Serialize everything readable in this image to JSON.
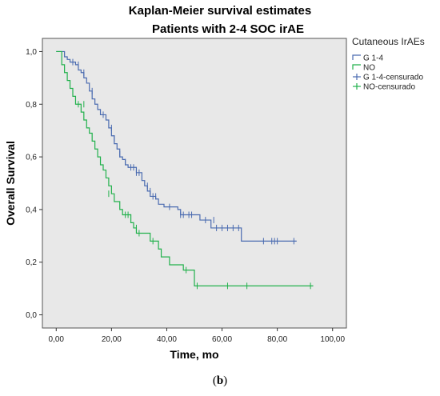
{
  "chart_data": {
    "type": "line",
    "step": true,
    "title": "Kaplan-Meier survival estimates",
    "subtitle": "Patients with 2-4 SOC irAE",
    "xlabel": "Time, mo",
    "ylabel": "Overall Survival",
    "xlim": [
      -5,
      105
    ],
    "ylim": [
      -0.05,
      1.05
    ],
    "x_ticks": [
      0,
      20,
      40,
      60,
      80,
      100
    ],
    "x_tick_labels": [
      "0,00",
      "20,00",
      "40,00",
      "60,00",
      "80,00",
      "100,00"
    ],
    "y_ticks": [
      0,
      0.2,
      0.4,
      0.6,
      0.8,
      1.0
    ],
    "y_tick_labels": [
      "0,0",
      "0,2",
      "0,4",
      "0,6",
      "0,8",
      "1,0"
    ],
    "grid": false,
    "plot_background": "#e8e8e8",
    "legend": {
      "title": "Cutaneous IrAEs",
      "position": "right",
      "entries": [
        {
          "label": "G 1-4",
          "color": "#4a6bb0",
          "kind": "line"
        },
        {
          "label": "NO",
          "color": "#22b14c",
          "kind": "line"
        },
        {
          "label": "G 1-4-censurado",
          "color": "#4a6bb0",
          "kind": "censor"
        },
        {
          "label": "NO-censurado",
          "color": "#22b14c",
          "kind": "censor"
        }
      ]
    },
    "series": [
      {
        "name": "G 1-4",
        "color": "#4a6bb0",
        "steps": [
          [
            0,
            1.0
          ],
          [
            3,
            0.98
          ],
          [
            4,
            0.97
          ],
          [
            5,
            0.96
          ],
          [
            7,
            0.95
          ],
          [
            8,
            0.93
          ],
          [
            9,
            0.92
          ],
          [
            10,
            0.9
          ],
          [
            11,
            0.88
          ],
          [
            12,
            0.85
          ],
          [
            13,
            0.82
          ],
          [
            14,
            0.8
          ],
          [
            15,
            0.78
          ],
          [
            16,
            0.76
          ],
          [
            18,
            0.74
          ],
          [
            19,
            0.71
          ],
          [
            20,
            0.68
          ],
          [
            21,
            0.65
          ],
          [
            22,
            0.63
          ],
          [
            23,
            0.6
          ],
          [
            24,
            0.59
          ],
          [
            25,
            0.57
          ],
          [
            26,
            0.56
          ],
          [
            29,
            0.54
          ],
          [
            31,
            0.51
          ],
          [
            32,
            0.49
          ],
          [
            33,
            0.47
          ],
          [
            34,
            0.45
          ],
          [
            36,
            0.44
          ],
          [
            37,
            0.42
          ],
          [
            39,
            0.41
          ],
          [
            44,
            0.4
          ],
          [
            45,
            0.38
          ],
          [
            52,
            0.36
          ],
          [
            56,
            0.33
          ],
          [
            67,
            0.28
          ]
        ],
        "end_x": 87,
        "censored": [
          [
            6,
            0.96
          ],
          [
            8,
            0.95
          ],
          [
            10,
            0.92
          ],
          [
            13,
            0.85
          ],
          [
            17,
            0.76
          ],
          [
            20,
            0.71
          ],
          [
            21,
            0.67
          ],
          [
            23,
            0.61
          ],
          [
            25,
            0.58
          ],
          [
            27,
            0.56
          ],
          [
            28,
            0.56
          ],
          [
            29,
            0.54
          ],
          [
            30,
            0.54
          ],
          [
            33,
            0.49
          ],
          [
            34,
            0.47
          ],
          [
            35,
            0.45
          ],
          [
            36,
            0.45
          ],
          [
            41,
            0.41
          ],
          [
            45,
            0.38
          ],
          [
            46,
            0.38
          ],
          [
            48,
            0.38
          ],
          [
            49,
            0.38
          ],
          [
            54,
            0.36
          ],
          [
            57,
            0.36
          ],
          [
            58,
            0.33
          ],
          [
            60,
            0.33
          ],
          [
            62,
            0.33
          ],
          [
            64,
            0.33
          ],
          [
            66,
            0.33
          ],
          [
            75,
            0.28
          ],
          [
            78,
            0.28
          ],
          [
            79,
            0.28
          ],
          [
            80,
            0.28
          ],
          [
            86,
            0.28
          ]
        ]
      },
      {
        "name": "NO",
        "color": "#22b14c",
        "steps": [
          [
            0,
            1.0
          ],
          [
            2,
            0.95
          ],
          [
            3,
            0.92
          ],
          [
            4,
            0.89
          ],
          [
            5,
            0.86
          ],
          [
            6,
            0.83
          ],
          [
            7,
            0.8
          ],
          [
            9,
            0.77
          ],
          [
            10,
            0.74
          ],
          [
            11,
            0.71
          ],
          [
            12,
            0.69
          ],
          [
            13,
            0.66
          ],
          [
            14,
            0.63
          ],
          [
            15,
            0.6
          ],
          [
            16,
            0.57
          ],
          [
            17,
            0.55
          ],
          [
            18,
            0.52
          ],
          [
            19,
            0.49
          ],
          [
            20,
            0.46
          ],
          [
            21,
            0.43
          ],
          [
            23,
            0.4
          ],
          [
            24,
            0.38
          ],
          [
            27,
            0.35
          ],
          [
            28,
            0.33
          ],
          [
            29,
            0.31
          ],
          [
            34,
            0.28
          ],
          [
            37,
            0.25
          ],
          [
            38,
            0.22
          ],
          [
            41,
            0.19
          ],
          [
            46,
            0.17
          ],
          [
            50,
            0.11
          ]
        ],
        "end_x": 93,
        "censored": [
          [
            8,
            0.8
          ],
          [
            10,
            0.8
          ],
          [
            19,
            0.46
          ],
          [
            25,
            0.38
          ],
          [
            26,
            0.38
          ],
          [
            27,
            0.37
          ],
          [
            29,
            0.33
          ],
          [
            30,
            0.31
          ],
          [
            35,
            0.28
          ],
          [
            47,
            0.17
          ],
          [
            51,
            0.11
          ],
          [
            62,
            0.11
          ],
          [
            69,
            0.11
          ],
          [
            92,
            0.11
          ]
        ]
      }
    ]
  },
  "caption": {
    "open": "(",
    "letter": "b",
    "close": ")"
  }
}
